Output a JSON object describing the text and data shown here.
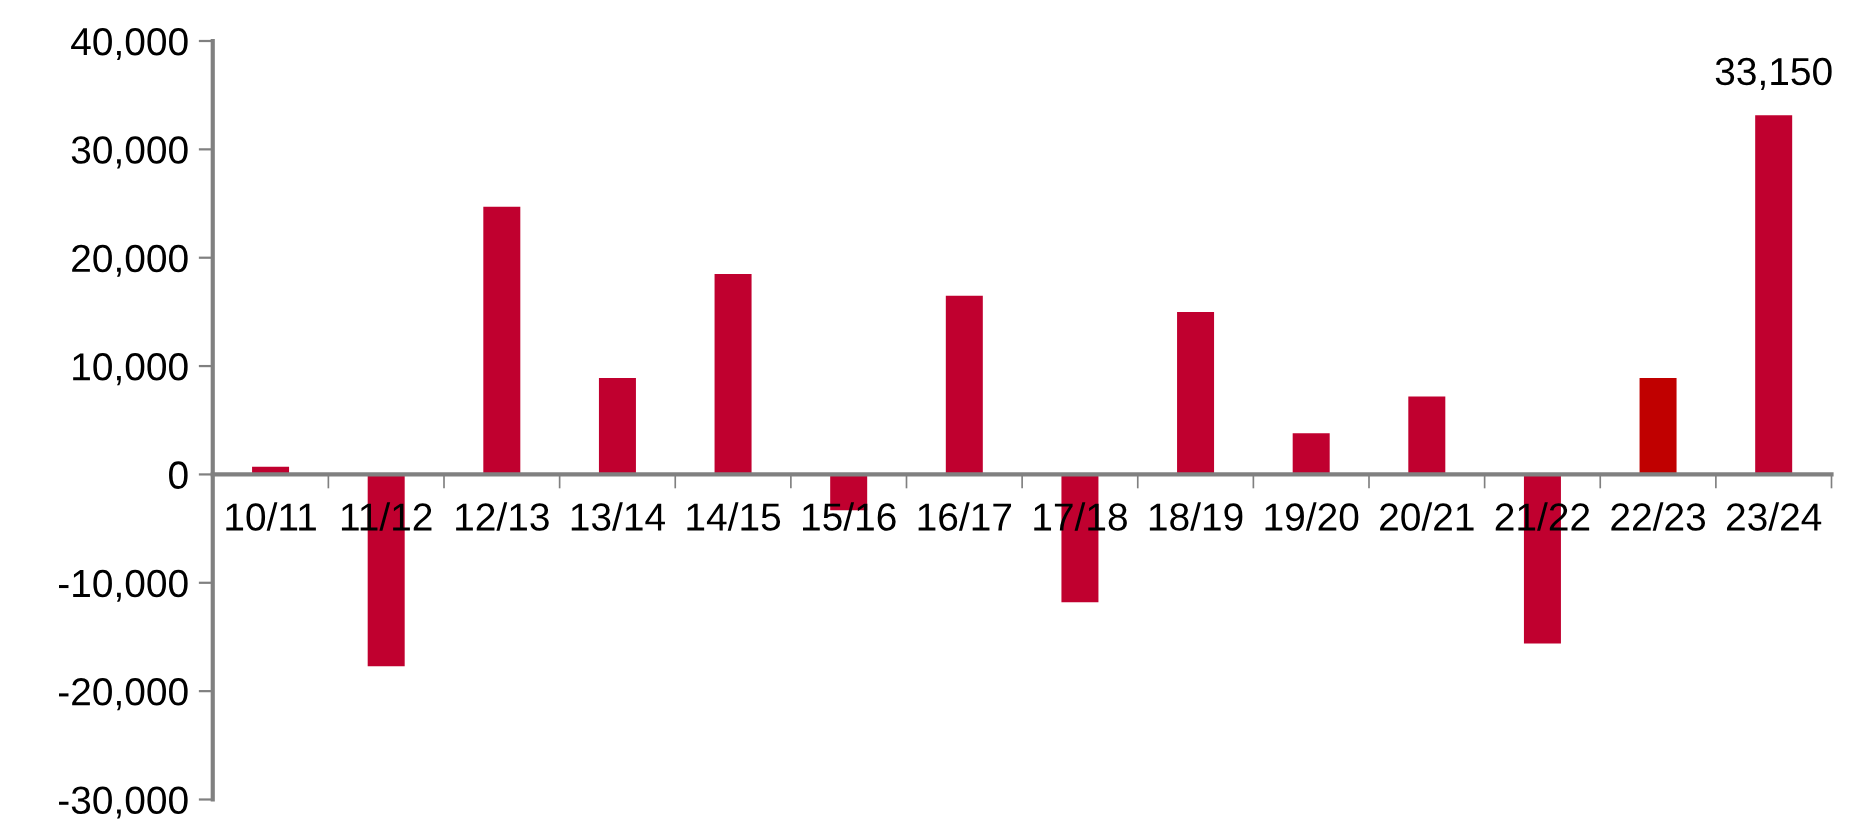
{
  "chart_data": {
    "type": "bar",
    "categories": [
      "10/11",
      "11/12",
      "12/13",
      "13/14",
      "14/15",
      "15/16",
      "16/17",
      "17/18",
      "18/19",
      "19/20",
      "20/21",
      "21/22",
      "22/23",
      "23/24"
    ],
    "values": [
      700,
      -17700,
      24700,
      8900,
      18500,
      -3300,
      16500,
      -11800,
      15000,
      3800,
      7200,
      -15600,
      8900,
      33150
    ],
    "colors": [
      "#c0002f",
      "#c0002f",
      "#c0002f",
      "#c0002f",
      "#c0002f",
      "#c0002f",
      "#c0002f",
      "#c0002f",
      "#c0002f",
      "#c0002f",
      "#c0002f",
      "#c0002f",
      "#c00000",
      "#c0002f"
    ],
    "value_labels": [
      null,
      null,
      null,
      null,
      null,
      null,
      null,
      null,
      null,
      null,
      null,
      null,
      null,
      "33,150"
    ],
    "ylim": [
      -30000,
      40000
    ],
    "yticks": [
      {
        "value": -30000,
        "label": "-30,000"
      },
      {
        "value": -20000,
        "label": "-20,000"
      },
      {
        "value": -10000,
        "label": "-10,000"
      },
      {
        "value": 0,
        "label": "0"
      },
      {
        "value": 10000,
        "label": "10,000"
      },
      {
        "value": 20000,
        "label": "20,000"
      },
      {
        "value": 30000,
        "label": "30,000"
      },
      {
        "value": 40000,
        "label": "40,000"
      }
    ],
    "grid": false
  }
}
